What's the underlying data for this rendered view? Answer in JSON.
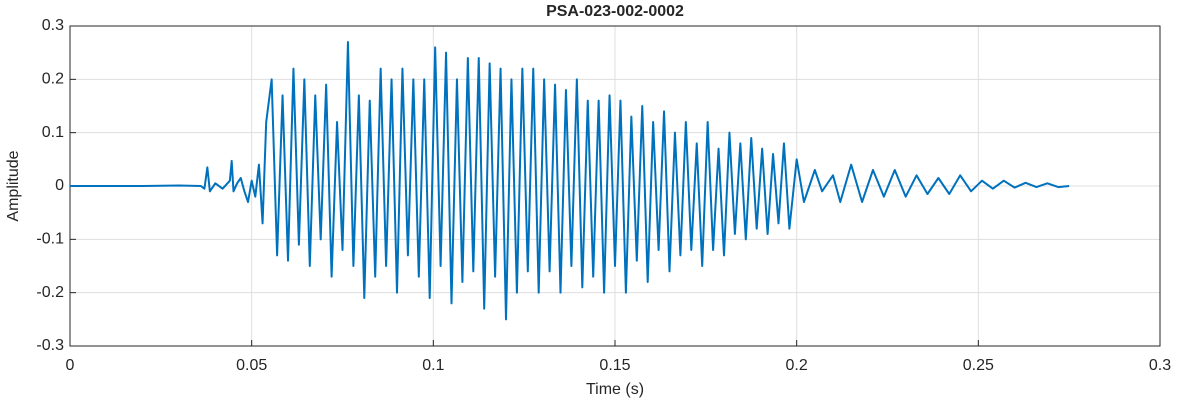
{
  "chart_data": {
    "type": "line",
    "title": "PSA-023-002-0002",
    "xlabel": "Time (s)",
    "ylabel": "Amplitude",
    "color": "#0072bd",
    "grid": true,
    "xlim": [
      0,
      0.3
    ],
    "xticks": [
      0,
      0.05,
      0.1,
      0.15,
      0.2,
      0.25,
      0.3
    ],
    "ylim": [
      -0.3,
      0.3
    ],
    "yticks": [
      -0.3,
      -0.2,
      -0.1,
      0,
      0.1,
      0.2,
      0.3
    ],
    "x": [
      0,
      0.02,
      0.03,
      0.036,
      0.037,
      0.0378,
      0.0385,
      0.04,
      0.042,
      0.044,
      0.0445,
      0.045,
      0.046,
      0.047,
      0.048,
      0.049,
      0.05,
      0.051,
      0.052,
      0.053,
      0.054,
      0.0555,
      0.057,
      0.0585,
      0.06,
      0.0615,
      0.063,
      0.0645,
      0.066,
      0.0675,
      0.069,
      0.0705,
      0.072,
      0.0735,
      0.075,
      0.0765,
      0.078,
      0.0795,
      0.081,
      0.0825,
      0.084,
      0.0855,
      0.087,
      0.0885,
      0.09,
      0.0915,
      0.093,
      0.0945,
      0.096,
      0.0975,
      0.099,
      0.1005,
      0.102,
      0.1035,
      0.105,
      0.1065,
      0.108,
      0.1095,
      0.111,
      0.1125,
      0.114,
      0.1155,
      0.117,
      0.1185,
      0.12,
      0.1215,
      0.123,
      0.1245,
      0.126,
      0.1275,
      0.129,
      0.1305,
      0.132,
      0.1335,
      0.135,
      0.1365,
      0.138,
      0.1395,
      0.141,
      0.1425,
      0.144,
      0.1455,
      0.147,
      0.1485,
      0.15,
      0.1515,
      0.153,
      0.1545,
      0.156,
      0.1575,
      0.159,
      0.1605,
      0.162,
      0.1635,
      0.165,
      0.1665,
      0.168,
      0.1695,
      0.171,
      0.1725,
      0.174,
      0.1755,
      0.177,
      0.1785,
      0.18,
      0.1815,
      0.183,
      0.1845,
      0.186,
      0.1875,
      0.189,
      0.1905,
      0.192,
      0.1935,
      0.195,
      0.1965,
      0.198,
      0.2,
      0.202,
      0.205,
      0.207,
      0.21,
      0.212,
      0.215,
      0.218,
      0.221,
      0.224,
      0.227,
      0.23,
      0.233,
      0.236,
      0.239,
      0.242,
      0.245,
      0.248,
      0.251,
      0.254,
      0.257,
      0.26,
      0.263,
      0.266,
      0.269,
      0.272,
      0.275
    ],
    "values": [
      0,
      0,
      0.001,
      0,
      -0.005,
      0.035,
      -0.01,
      0.005,
      -0.005,
      0.01,
      0.047,
      -0.01,
      0.005,
      0.015,
      -0.01,
      -0.03,
      0.01,
      -0.02,
      0.04,
      -0.07,
      0.12,
      0.2,
      -0.13,
      0.17,
      -0.14,
      0.22,
      -0.11,
      0.2,
      -0.15,
      0.17,
      -0.1,
      0.19,
      -0.17,
      0.12,
      -0.12,
      0.27,
      -0.15,
      0.17,
      -0.21,
      0.16,
      -0.17,
      0.22,
      -0.15,
      0.2,
      -0.2,
      0.22,
      -0.13,
      0.2,
      -0.17,
      0.2,
      -0.21,
      0.26,
      -0.15,
      0.25,
      -0.22,
      0.2,
      -0.18,
      0.24,
      -0.16,
      0.24,
      -0.23,
      0.23,
      -0.17,
      0.22,
      -0.25,
      0.2,
      -0.2,
      0.22,
      -0.16,
      0.22,
      -0.2,
      0.2,
      -0.16,
      0.19,
      -0.2,
      0.18,
      -0.15,
      0.2,
      -0.19,
      0.16,
      -0.17,
      0.16,
      -0.2,
      0.17,
      -0.15,
      0.16,
      -0.2,
      0.13,
      -0.14,
      0.15,
      -0.18,
      0.12,
      -0.12,
      0.14,
      -0.16,
      0.1,
      -0.13,
      0.12,
      -0.12,
      0.08,
      -0.15,
      0.12,
      -0.12,
      0.07,
      -0.13,
      0.1,
      -0.09,
      0.08,
      -0.1,
      0.09,
      -0.08,
      0.07,
      -0.09,
      0.06,
      -0.07,
      0.08,
      -0.08,
      0.05,
      -0.03,
      0.03,
      -0.01,
      0.02,
      -0.03,
      0.04,
      -0.03,
      0.03,
      -0.02,
      0.03,
      -0.02,
      0.02,
      -0.015,
      0.015,
      -0.015,
      0.02,
      -0.01,
      0.01,
      -0.005,
      0.01,
      -0.003,
      0.006,
      -0.002,
      0.005,
      -0.002,
      0
    ]
  }
}
